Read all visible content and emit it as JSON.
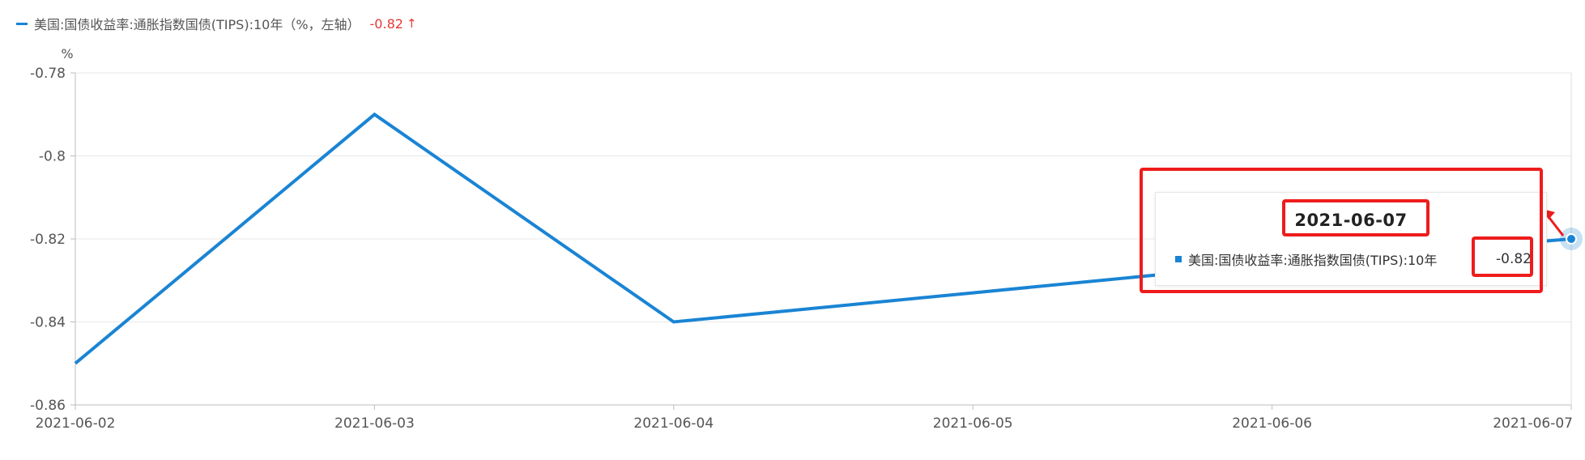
{
  "legend": {
    "series_label": "美国:国债收益率:通胀指数国债(TIPS):10年（%，左轴）",
    "latest_value": "-0.82",
    "trend_arrow": "↑"
  },
  "tooltip": {
    "date": "2021-06-07",
    "series_label": "美国:国债收益率:通胀指数国债(TIPS):10年",
    "value": "-0.82"
  },
  "colors": {
    "series": "#1a84d4",
    "highlight": "#ee1c1c",
    "up": "#e53935"
  },
  "chart_data": {
    "type": "line",
    "x": [
      "2021-06-02",
      "2021-06-03",
      "2021-06-04",
      "2021-06-05",
      "2021-06-06",
      "2021-06-07"
    ],
    "series": [
      {
        "name": "美国:国债收益率:通胀指数国债(TIPS):10年",
        "values": [
          -0.85,
          -0.79,
          -0.84,
          -0.833,
          -0.826,
          -0.82
        ]
      }
    ],
    "ylabel": "%",
    "ylim": [
      -0.86,
      -0.78
    ],
    "yticks": [
      -0.78,
      -0.8,
      -0.82,
      -0.84,
      -0.86
    ],
    "ytick_labels": [
      "-0.78",
      "-0.8",
      "-0.82",
      "-0.84",
      "-0.86"
    ],
    "grid": true,
    "legend_position": "top-left",
    "highlighted_x": "2021-06-07"
  }
}
